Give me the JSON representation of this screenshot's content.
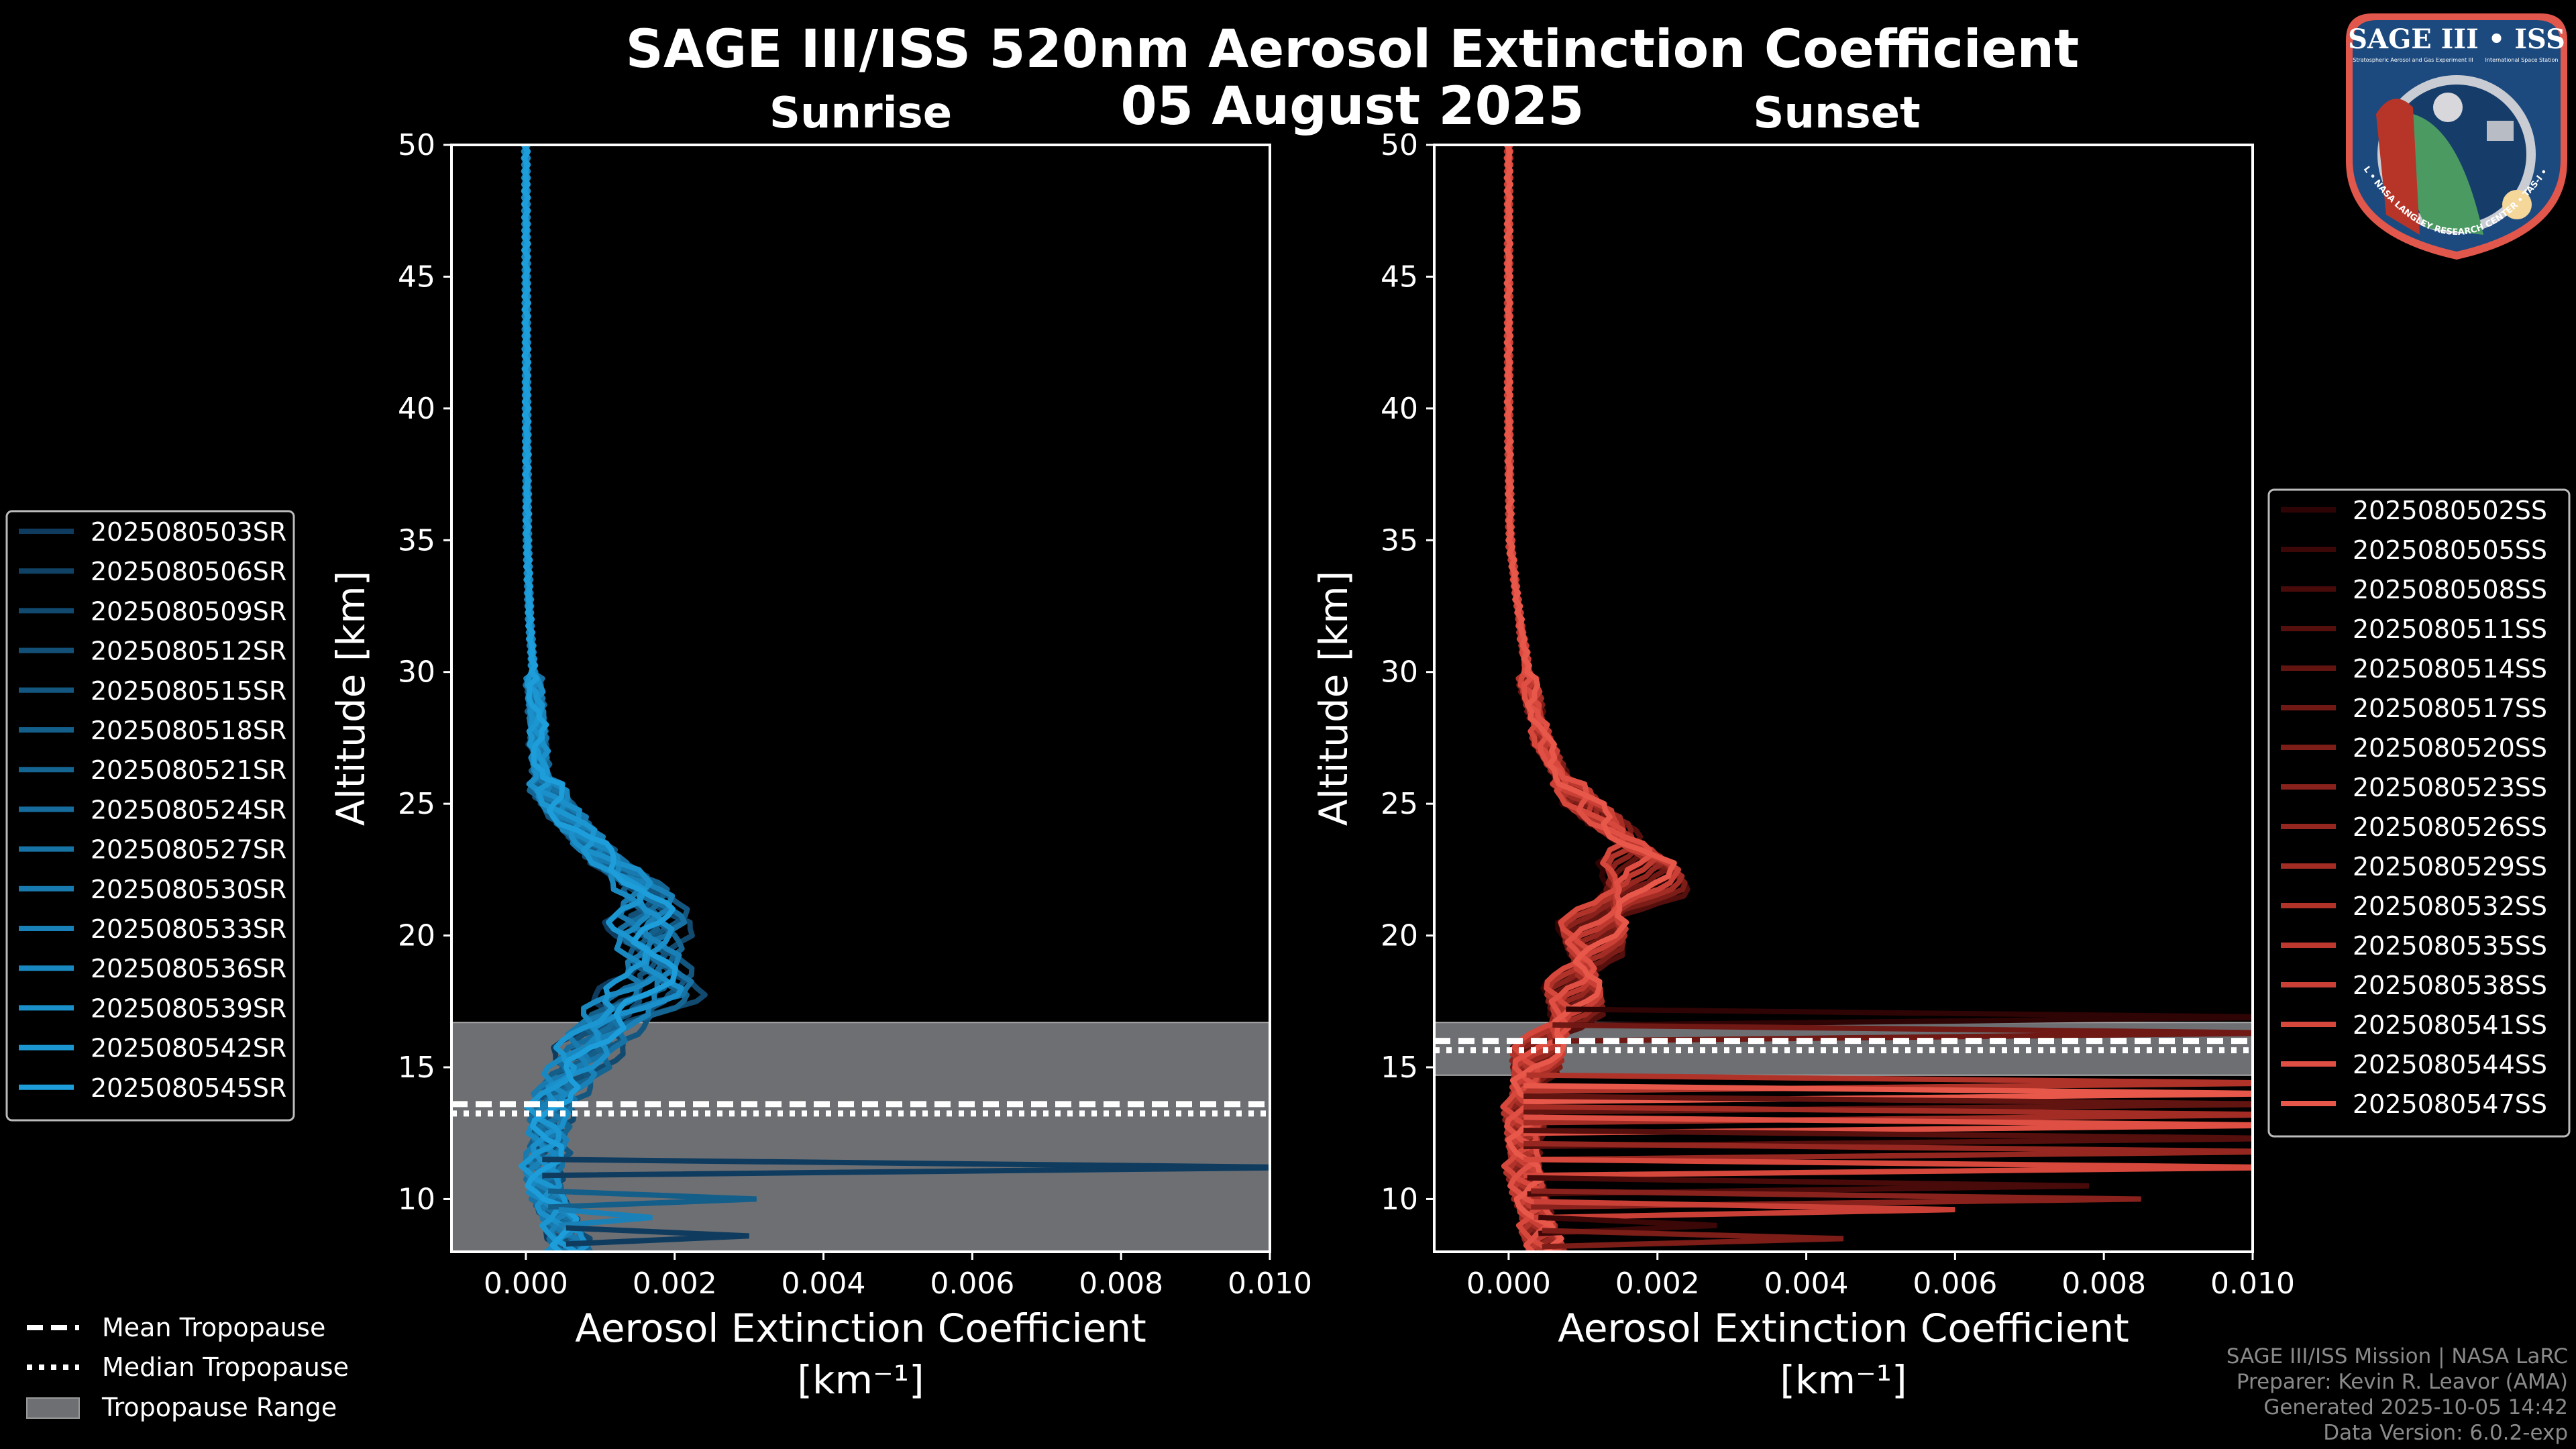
{
  "title": "SAGE III/ISS 520nm Aerosol Extinction Coefficient",
  "subtitle": "05 August 2025",
  "logo": {
    "text_main": "SAGE III • ISS",
    "text_sub": "Stratospheric Aerosol and Gas Experiment III",
    "text_iss": "International Space Station",
    "text_ring": "BALL • NASA LANGLEY RESEARCH CENTER • TAS-I • ESA"
  },
  "common_legend": {
    "mean": "Mean Tropopause",
    "median": "Median Tropopause",
    "range": "Tropopause Range"
  },
  "footer": [
    "SAGE III/ISS Mission | NASA LaRC",
    "Preparer: Kevin R. Leavor (AMA)",
    "Generated 2025-10-05 14:42",
    "Data Version: 6.0.2-exp"
  ],
  "chart_data": [
    {
      "type": "line",
      "title": "Sunrise",
      "xlabel": "Aerosol Extinction Coefficient",
      "xlabel_unit": "[km⁻¹]",
      "ylabel": "Altitude [km]",
      "xlim": [
        -0.001,
        0.01
      ],
      "ylim": [
        8,
        50
      ],
      "xticks": [
        0.0,
        0.002,
        0.004,
        0.006,
        0.008,
        0.01
      ],
      "xtick_labels": [
        "0.000",
        "0.002",
        "0.004",
        "0.006",
        "0.008",
        "0.010"
      ],
      "yticks": [
        10,
        15,
        20,
        25,
        30,
        35,
        40,
        45,
        50
      ],
      "legend_placement": "left",
      "tropopause": {
        "range": [
          7.5,
          16.7
        ],
        "mean": 13.5,
        "median": 13.4
      },
      "base_profile": {
        "altitude": [
          8,
          9,
          10,
          11,
          12,
          13,
          14,
          15,
          16,
          17,
          18,
          19,
          20,
          21,
          22,
          23,
          24,
          25,
          26,
          28,
          30,
          32,
          35,
          40,
          50
        ],
        "extinction": [
          0.0006,
          0.0005,
          0.0003,
          0.0002,
          0.0003,
          0.0003,
          0.0004,
          0.0007,
          0.0009,
          0.0012,
          0.0018,
          0.0017,
          0.0016,
          0.0017,
          0.0015,
          0.001,
          0.0007,
          0.0004,
          0.0002,
          0.00015,
          0.0001,
          5e-05,
          2e-05,
          1e-05,
          0.0
        ]
      },
      "spikes": [
        {
          "altitude": 11.2,
          "extinction": 0.0105
        },
        {
          "altitude": 10.0,
          "extinction": 0.0031
        },
        {
          "altitude": 9.3,
          "extinction": 0.0017
        },
        {
          "altitude": 8.6,
          "extinction": 0.003
        }
      ],
      "series": [
        {
          "name": "2025080503SR",
          "color": "#0f3b5e"
        },
        {
          "name": "2025080506SR",
          "color": "#104266"
        },
        {
          "name": "2025080509SR",
          "color": "#11496f"
        },
        {
          "name": "2025080512SR",
          "color": "#125078"
        },
        {
          "name": "2025080515SR",
          "color": "#135781"
        },
        {
          "name": "2025080518SR",
          "color": "#145e8a"
        },
        {
          "name": "2025080521SR",
          "color": "#156593"
        },
        {
          "name": "2025080524SR",
          "color": "#166c9c"
        },
        {
          "name": "2025080527SR",
          "color": "#1773a5"
        },
        {
          "name": "2025080530SR",
          "color": "#187aae"
        },
        {
          "name": "2025080533SR",
          "color": "#1981b7"
        },
        {
          "name": "2025080536SR",
          "color": "#1a88c0"
        },
        {
          "name": "2025080539SR",
          "color": "#1b8fc9"
        },
        {
          "name": "2025080542SR",
          "color": "#1c96d1"
        },
        {
          "name": "2025080545SR",
          "color": "#1d9dda"
        }
      ]
    },
    {
      "type": "line",
      "title": "Sunset",
      "xlabel": "Aerosol Extinction Coefficient",
      "xlabel_unit": "[km⁻¹]",
      "ylabel": "Altitude [km]",
      "xlim": [
        -0.001,
        0.01
      ],
      "ylim": [
        8,
        50
      ],
      "xticks": [
        0.0,
        0.002,
        0.004,
        0.006,
        0.008,
        0.01
      ],
      "xtick_labels": [
        "0.000",
        "0.002",
        "0.004",
        "0.006",
        "0.008",
        "0.010"
      ],
      "yticks": [
        10,
        15,
        20,
        25,
        30,
        35,
        40,
        45,
        50
      ],
      "legend_placement": "right",
      "tropopause": {
        "range": [
          14.7,
          16.7
        ],
        "mean": 15.9,
        "median": 15.8
      },
      "base_profile": {
        "altitude": [
          8,
          9,
          10,
          11,
          12,
          13,
          14,
          15,
          16,
          17,
          18,
          19,
          20,
          21,
          22,
          23,
          24,
          25,
          26,
          27,
          29,
          31,
          33,
          35,
          40,
          50
        ],
        "extinction": [
          0.0005,
          0.0004,
          0.0003,
          0.0002,
          0.0002,
          0.0002,
          0.0002,
          0.0003,
          0.0005,
          0.0008,
          0.0009,
          0.001,
          0.0011,
          0.0013,
          0.0018,
          0.0018,
          0.0014,
          0.001,
          0.0007,
          0.0005,
          0.0003,
          0.0002,
          0.0001,
          2e-05,
          0.0,
          0.0
        ]
      },
      "spikes": [
        {
          "altitude": 16.9,
          "extinction": 0.0105
        },
        {
          "altitude": 16.3,
          "extinction": 0.0105
        },
        {
          "altitude": 14.4,
          "extinction": 0.0105
        },
        {
          "altitude": 14.0,
          "extinction": 0.0105
        },
        {
          "altitude": 13.6,
          "extinction": 0.0105
        },
        {
          "altitude": 13.2,
          "extinction": 0.0105
        },
        {
          "altitude": 12.8,
          "extinction": 0.0105
        },
        {
          "altitude": 12.3,
          "extinction": 0.0105
        },
        {
          "altitude": 11.8,
          "extinction": 0.0105
        },
        {
          "altitude": 11.2,
          "extinction": 0.0105
        },
        {
          "altitude": 10.5,
          "extinction": 0.0078
        },
        {
          "altitude": 10.0,
          "extinction": 0.0085
        },
        {
          "altitude": 9.6,
          "extinction": 0.006
        },
        {
          "altitude": 9.0,
          "extinction": 0.0028
        },
        {
          "altitude": 8.5,
          "extinction": 0.0045
        }
      ],
      "series": [
        {
          "name": "2025080502SS",
          "color": "#2e0404"
        },
        {
          "name": "2025080505SS",
          "color": "#3b0707"
        },
        {
          "name": "2025080508SS",
          "color": "#480b0a"
        },
        {
          "name": "2025080511SS",
          "color": "#550f0d"
        },
        {
          "name": "2025080514SS",
          "color": "#621411"
        },
        {
          "name": "2025080517SS",
          "color": "#6f1814"
        },
        {
          "name": "2025080520SS",
          "color": "#7c1d18"
        },
        {
          "name": "2025080523SS",
          "color": "#89221c"
        },
        {
          "name": "2025080526SS",
          "color": "#962720"
        },
        {
          "name": "2025080529SS",
          "color": "#a32d25"
        },
        {
          "name": "2025080532SS",
          "color": "#b0332a"
        },
        {
          "name": "2025080535SS",
          "color": "#bd3930"
        },
        {
          "name": "2025080538SS",
          "color": "#ca4036"
        },
        {
          "name": "2025080541SS",
          "color": "#d6473c"
        },
        {
          "name": "2025080544SS",
          "color": "#e04f43"
        },
        {
          "name": "2025080547SS",
          "color": "#e8584a"
        }
      ]
    }
  ]
}
